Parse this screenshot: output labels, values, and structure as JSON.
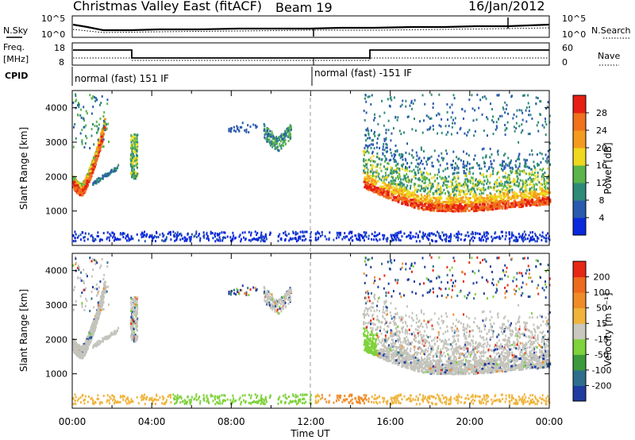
{
  "header": {
    "title": "Christmas Valley East (fitACF)",
    "beam": "Beam 19",
    "date": "16/Jan/2012"
  },
  "top_panels": {
    "nsky_label": "N.Sky",
    "nsearch_label": "N.Search",
    "noise_ticks": [
      "10^5",
      "10^0"
    ],
    "freq_label_1": "Freq.",
    "freq_label_2": "[MHz]",
    "freq_ticks": [
      "18",
      "8"
    ],
    "nave_label": "Nave",
    "nave_ticks": [
      "60",
      "0"
    ],
    "cpid_label": "CPID",
    "cpid_segments": [
      {
        "label": "normal (fast) 151 IF",
        "start": "00:00",
        "end": "12:00"
      },
      {
        "label": "normal (fast) -151 IF",
        "start": "12:00",
        "end": "00:00"
      }
    ]
  },
  "chart_data": [
    {
      "type": "heatmap",
      "title": "",
      "xlabel": "Time UT",
      "ylabel": "Slant Range [km]",
      "x_ticks": [
        "00:00",
        "04:00",
        "08:00",
        "12:00",
        "16:00",
        "20:00",
        "00:00"
      ],
      "y_ticks": [
        1000,
        2000,
        3000,
        4000
      ],
      "ylim": [
        0,
        4500
      ],
      "xlim_hours": [
        0,
        24
      ],
      "colorbar": {
        "label": "Power [dB]",
        "ticks": [
          "4",
          "8",
          "12",
          "16",
          "20",
          "24",
          "28"
        ],
        "range": [
          0,
          32
        ],
        "colors": [
          "#0a28dc",
          "#2a5aae",
          "#2e8a78",
          "#5ab44a",
          "#f0d81e",
          "#f49b1e",
          "#f0701c",
          "#e61e14"
        ]
      },
      "features": [
        {
          "name": "early-evening-arc",
          "hours": [
            0.0,
            1.6
          ],
          "range_km": [
            1450,
            4300
          ]
        },
        {
          "name": "echo-arc-0300",
          "hours": [
            2.9,
            3.2
          ],
          "range_km": [
            1950,
            3200
          ]
        },
        {
          "name": "mid-patch-1000",
          "hours": [
            9.6,
            11.0
          ],
          "range_km": [
            2600,
            3400
          ]
        },
        {
          "name": "late-band",
          "hours": [
            14.5,
            24.0
          ],
          "range_km": [
            900,
            3400
          ]
        },
        {
          "name": "ground-scatter-near",
          "hours": [
            0.0,
            24.0
          ],
          "range_km": [
            120,
            400
          ]
        }
      ]
    },
    {
      "type": "heatmap",
      "title": "",
      "xlabel": "Time UT",
      "ylabel": "Slant Range [km]",
      "x_ticks": [
        "00:00",
        "04:00",
        "08:00",
        "12:00",
        "16:00",
        "20:00",
        "00:00"
      ],
      "y_ticks": [
        1000,
        2000,
        3000,
        4000
      ],
      "ylim": [
        0,
        4500
      ],
      "xlim_hours": [
        0,
        24
      ],
      "colorbar": {
        "label": "Velocity [m s⁻¹]",
        "ticks": [
          "200",
          "100",
          "50",
          "15",
          "-15",
          "-50",
          "-100",
          "-200"
        ],
        "range": [
          -250,
          250
        ],
        "colors": [
          "#1e3ca0",
          "#2e6e8c",
          "#3c9a3c",
          "#7ed23a",
          "#c8c8be",
          "#f0b43c",
          "#f08c28",
          "#ee6a1e",
          "#e62814"
        ]
      },
      "ground_scatter_color": "#c4c4bc"
    }
  ]
}
